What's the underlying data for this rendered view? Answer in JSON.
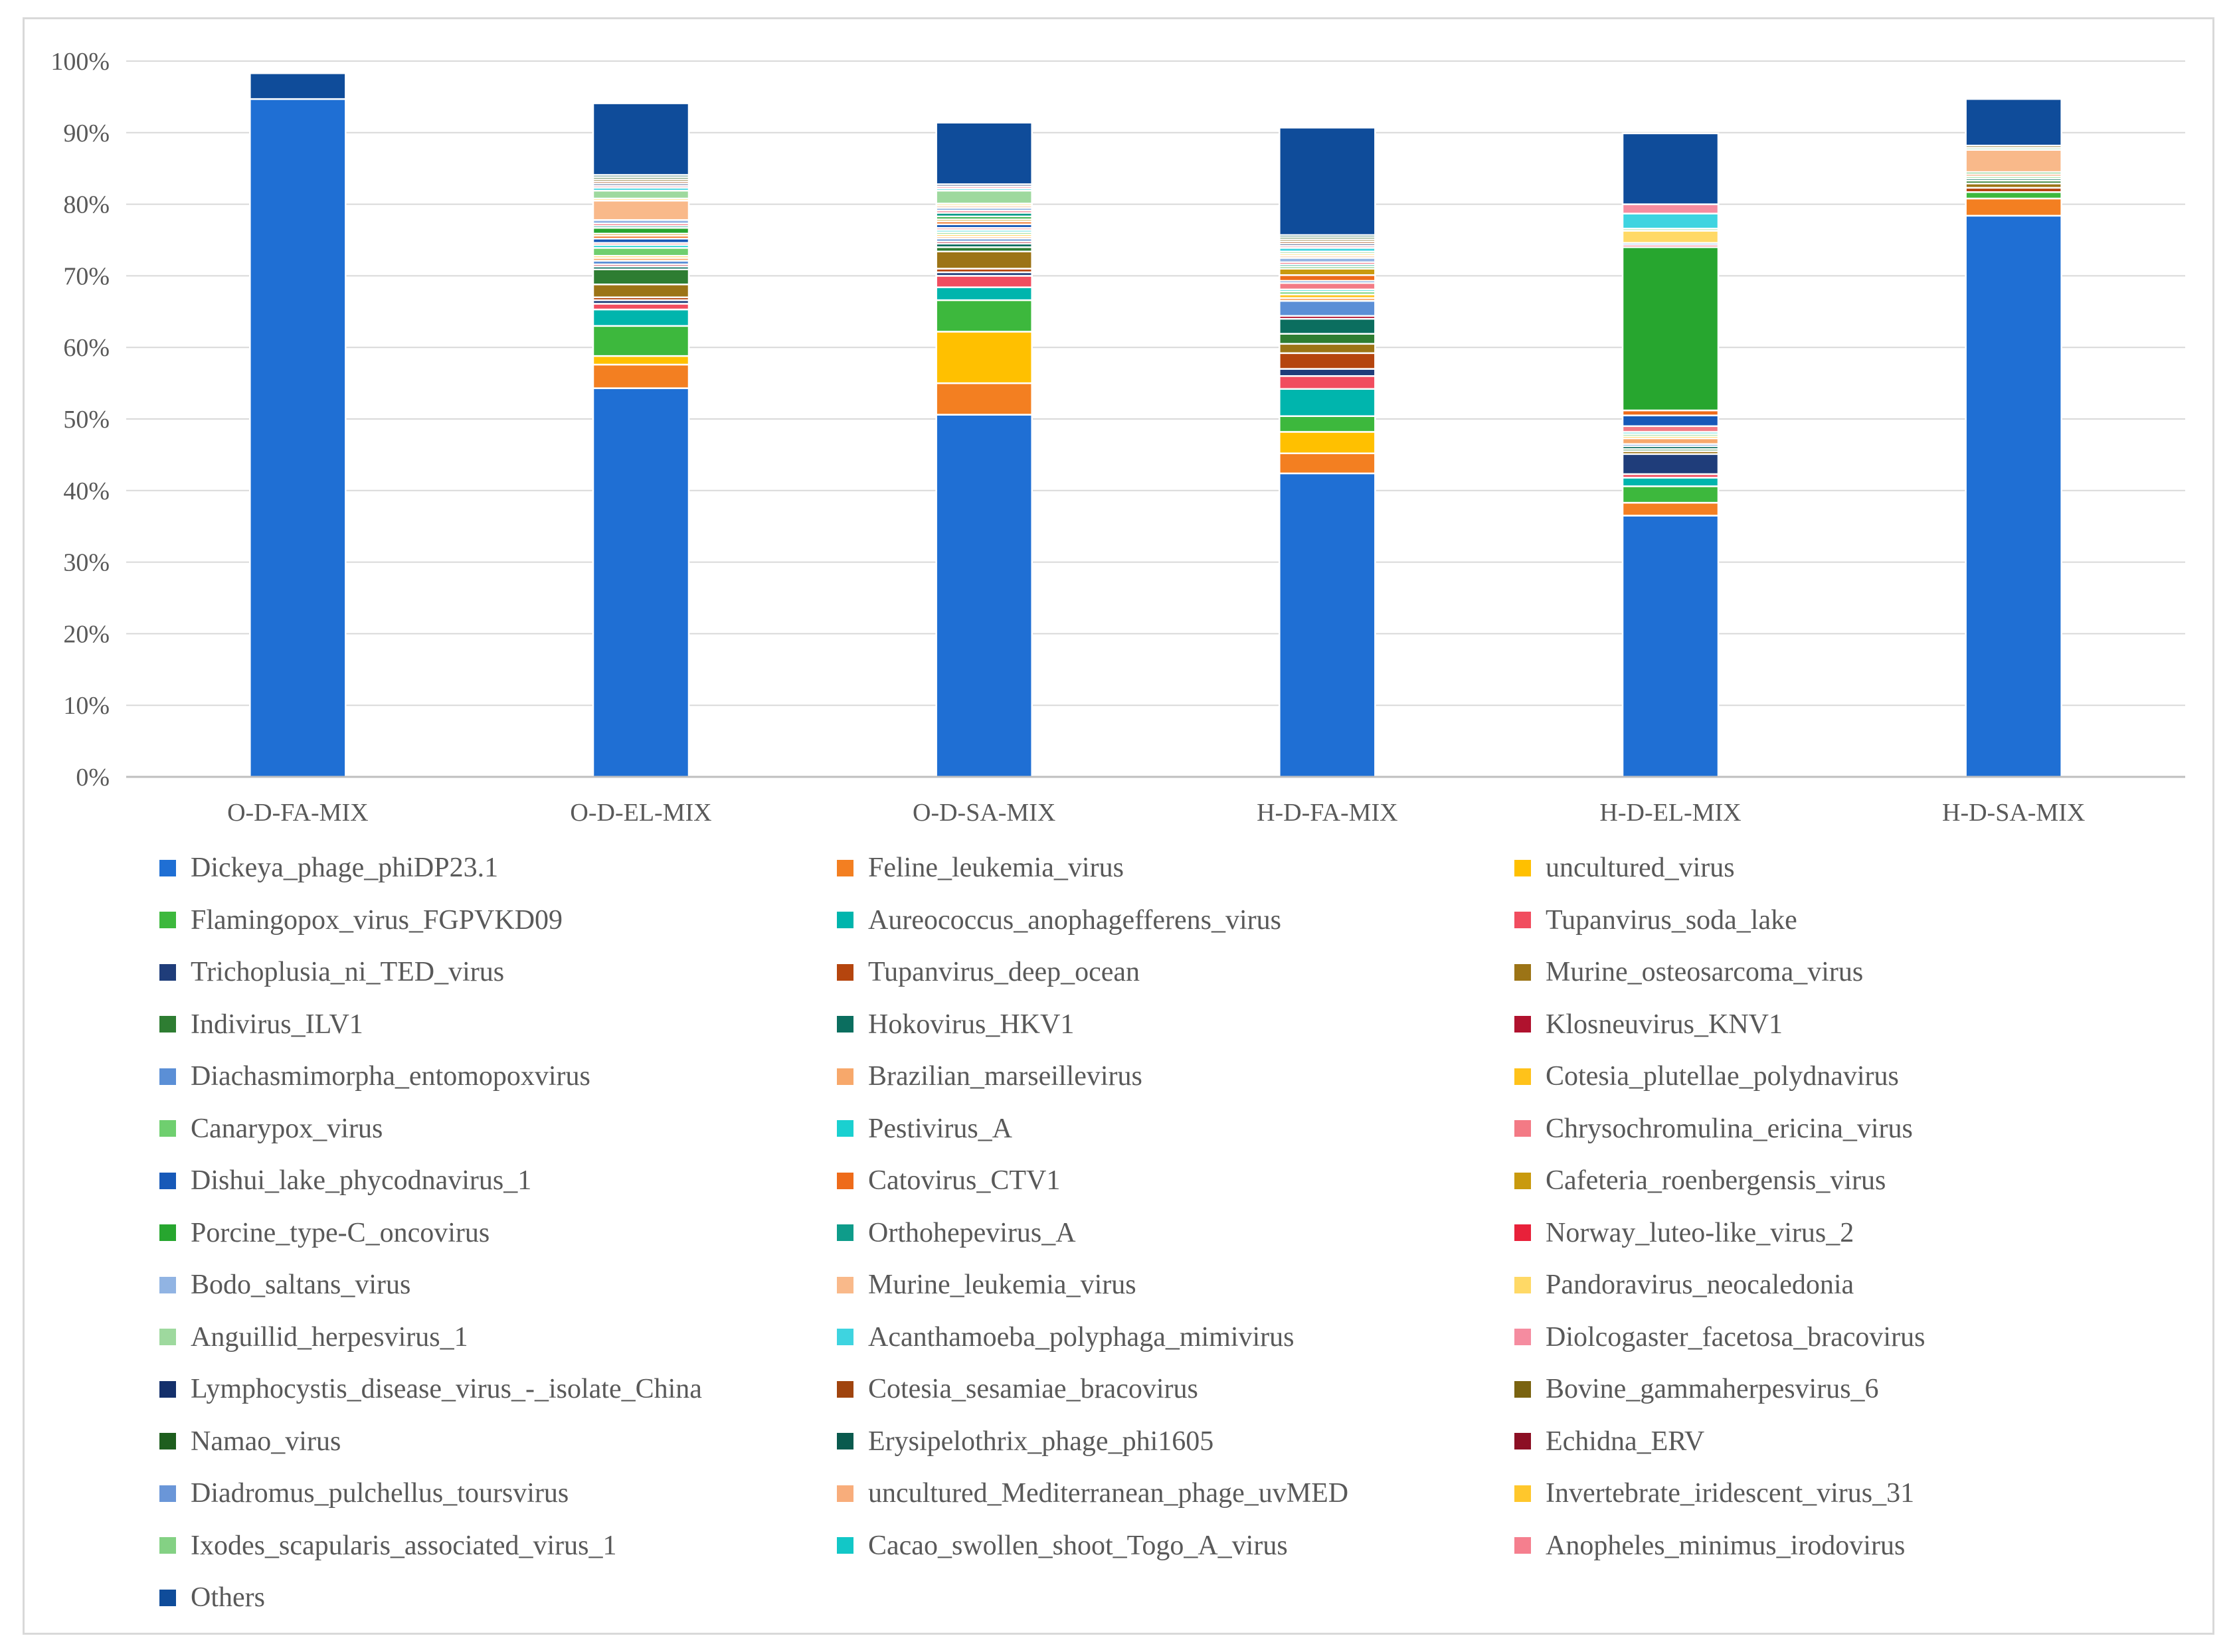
{
  "chart_data": {
    "type": "bar",
    "stacked": true,
    "normalized": true,
    "title": "",
    "xlabel": "",
    "ylabel": "",
    "ylim": [
      0,
      100
    ],
    "yticks": [
      "0%",
      "10%",
      "20%",
      "30%",
      "40%",
      "50%",
      "60%",
      "70%",
      "80%",
      "90%",
      "100%"
    ],
    "grid": true,
    "legend_position": "bottom",
    "categories": [
      "O-D-FA-MIX",
      "O-D-EL-MIX",
      "O-D-SA-MIX",
      "H-D-FA-MIX",
      "H-D-EL-MIX",
      "H-D-SA-MIX"
    ],
    "series": [
      {
        "name": "Dickeya_phage_phiDP23.1",
        "color": "#1F6FD4",
        "values": [
          94.7,
          54.3,
          50.6,
          42.4,
          36.5,
          78.4
        ]
      },
      {
        "name": "Feline_leukemia_virus",
        "color": "#F37F21",
        "values": [
          0,
          3.3,
          4.4,
          2.8,
          1.8,
          2.4
        ]
      },
      {
        "name": "uncultured_virus",
        "color": "#FFC000",
        "values": [
          0,
          1.2,
          7.2,
          3.0,
          0,
          0
        ]
      },
      {
        "name": "Flamingopox_virus_FGPVKD09",
        "color": "#3DB83D",
        "values": [
          0,
          4.2,
          4.4,
          2.2,
          2.3,
          0.9
        ]
      },
      {
        "name": "Aureococcus_anophagefferens_virus",
        "color": "#00B5AD",
        "values": [
          0,
          2.3,
          1.8,
          3.8,
          1.2,
          0
        ]
      },
      {
        "name": "Tupanvirus_soda_lake",
        "color": "#F14D5F",
        "values": [
          0,
          0.8,
          1.6,
          1.8,
          0.5,
          0
        ]
      },
      {
        "name": "Trichoplusia_ni_TED_virus",
        "color": "#1F3D7A",
        "values": [
          0,
          0.5,
          0.5,
          1.0,
          2.8,
          0
        ]
      },
      {
        "name": "Tupanvirus_deep_ocean",
        "color": "#B5450E",
        "values": [
          0,
          0.4,
          0.5,
          2.2,
          0,
          0.6
        ]
      },
      {
        "name": "Murine_osteosarcoma_virus",
        "color": "#9C7416",
        "values": [
          0,
          1.8,
          2.4,
          1.3,
          0.4,
          0.6
        ]
      },
      {
        "name": "Indivirus_ILV1",
        "color": "#2E7D32",
        "values": [
          0,
          2.1,
          0.6,
          1.4,
          0.3,
          0.4
        ]
      },
      {
        "name": "Hokovirus_HKV1",
        "color": "#0B6E5F",
        "values": [
          0,
          0.4,
          0.5,
          2.1,
          0.4,
          0.3
        ]
      },
      {
        "name": "Klosneuvirus_KNV1",
        "color": "#B0122E",
        "values": [
          0,
          0.3,
          0.3,
          0.4,
          0,
          0
        ]
      },
      {
        "name": "Diachasmimorpha_entomopoxvirus",
        "color": "#5B8FD6",
        "values": [
          0,
          0.5,
          0.4,
          2.1,
          0.3,
          0
        ]
      },
      {
        "name": "Brazilian_marseillevirus",
        "color": "#F7A86B",
        "values": [
          0,
          0.4,
          0.3,
          0.4,
          0.8,
          0
        ]
      },
      {
        "name": "Cotesia_plutellae_polydnavirus",
        "color": "#FFC21A",
        "values": [
          0,
          0.3,
          0.3,
          0.5,
          0.3,
          0
        ]
      },
      {
        "name": "Canarypox_virus",
        "color": "#6FCF6F",
        "values": [
          0,
          1.1,
          0.3,
          0.4,
          0.3,
          0.3
        ]
      },
      {
        "name": "Pestivirus_A",
        "color": "#1AD0D0",
        "values": [
          0,
          0.4,
          0.3,
          0.3,
          0.3,
          0
        ]
      },
      {
        "name": "Chrysochromulina_ericina_virus",
        "color": "#F37A85",
        "values": [
          0,
          0.3,
          0.3,
          0.9,
          0.8,
          0
        ]
      },
      {
        "name": "Dishui_lake_phycodnavirus_1",
        "color": "#1759B8",
        "values": [
          0,
          0.6,
          0.5,
          0.3,
          1.5,
          0
        ]
      },
      {
        "name": "Catovirus_CTV1",
        "color": "#EE6B1A",
        "values": [
          0,
          0.4,
          0.4,
          0.8,
          0.7,
          0.3
        ]
      },
      {
        "name": "Cafeteria_roenbergensis_virus",
        "color": "#C99A0E",
        "values": [
          0,
          0.3,
          0.3,
          0.9,
          0,
          0
        ]
      },
      {
        "name": "Porcine_type-C_oncovirus",
        "color": "#27A62F",
        "values": [
          0,
          0.8,
          0.4,
          0.3,
          22.8,
          0.3
        ]
      },
      {
        "name": "Orthohepevirus_A",
        "color": "#0E9C8A",
        "values": [
          0,
          0.3,
          0.5,
          0.3,
          0,
          0
        ]
      },
      {
        "name": "Norway_luteo-like_virus_2",
        "color": "#E8213A",
        "values": [
          0,
          0.3,
          0.3,
          0.3,
          0.3,
          0
        ]
      },
      {
        "name": "Bodo_saltans_virus",
        "color": "#91B4E3",
        "values": [
          0,
          0.5,
          0.4,
          0.6,
          0.3,
          0
        ]
      },
      {
        "name": "Murine_leukemia_virus",
        "color": "#F9B98A",
        "values": [
          0,
          2.7,
          0.3,
          0.3,
          0,
          3.1
        ]
      },
      {
        "name": "Pandoravirus_neocaledonia",
        "color": "#FFD966",
        "values": [
          0,
          0.3,
          0.3,
          0.3,
          1.7,
          0
        ]
      },
      {
        "name": "Anguillid_herpesvirus_1",
        "color": "#9ED99E",
        "values": [
          0,
          1.1,
          1.8,
          0.3,
          0.3,
          0.3
        ]
      },
      {
        "name": "Acanthamoeba_polyphaga_mimivirus",
        "color": "#3ED4E0",
        "values": [
          0,
          0.4,
          0.3,
          0.5,
          2.1,
          0
        ]
      },
      {
        "name": "Diolcogaster_facetosa_bracovirus",
        "color": "#F58CA0",
        "values": [
          0,
          0.3,
          0.3,
          0.3,
          1.3,
          0
        ]
      },
      {
        "name": "Lymphocystis_disease_virus_-_isolate_China",
        "color": "#14306B",
        "values": [
          0,
          0.3,
          0.3,
          0.3,
          0,
          0
        ]
      },
      {
        "name": "Cotesia_sesamiae_bracovirus",
        "color": "#A0440E",
        "values": [
          0,
          0.3,
          0,
          0.3,
          0,
          0
        ]
      },
      {
        "name": "Bovine_gammaherpesvirus_6",
        "color": "#7A6310",
        "values": [
          0,
          0.3,
          0,
          0.3,
          0,
          0.3
        ]
      },
      {
        "name": "Namao_virus",
        "color": "#1E5E1E",
        "values": [
          0,
          0.3,
          0,
          0.3,
          0,
          0
        ]
      },
      {
        "name": "Erysipelothrix_phage_phi1605",
        "color": "#0A5A4E",
        "values": [
          0,
          0.3,
          0,
          0.3,
          0,
          0
        ]
      },
      {
        "name": "Echidna_ERV",
        "color": "#8C0F24",
        "values": [
          0,
          0,
          0,
          0,
          0,
          0
        ]
      },
      {
        "name": "Diadromus_pulchellus_toursvirus",
        "color": "#6A96D8",
        "values": [
          0,
          0,
          0,
          0,
          0,
          0
        ]
      },
      {
        "name": "uncultured_Mediterranean_phage_uvMED",
        "color": "#F8AD7B",
        "values": [
          0,
          0,
          0,
          0,
          0,
          0
        ]
      },
      {
        "name": "Invertebrate_iridescent_virus_31",
        "color": "#FFC72C",
        "values": [
          0,
          0,
          0,
          0,
          0,
          0
        ]
      },
      {
        "name": "Ixodes_scapularis_associated_virus_1",
        "color": "#84D184",
        "values": [
          0,
          0,
          0,
          0,
          0,
          0
        ]
      },
      {
        "name": "Cacao_swollen_shoot_Togo_A_virus",
        "color": "#12C7C7",
        "values": [
          0,
          0,
          0,
          0,
          0,
          0
        ]
      },
      {
        "name": "Anopheles_minimus_irodovirus",
        "color": "#F57F8E",
        "values": [
          0,
          0,
          0,
          0,
          0,
          0
        ]
      },
      {
        "name": "Others",
        "color": "#0F4C9A",
        "values": [
          3.6,
          10.0,
          8.6,
          15.0,
          9.9,
          6.5
        ]
      }
    ]
  }
}
